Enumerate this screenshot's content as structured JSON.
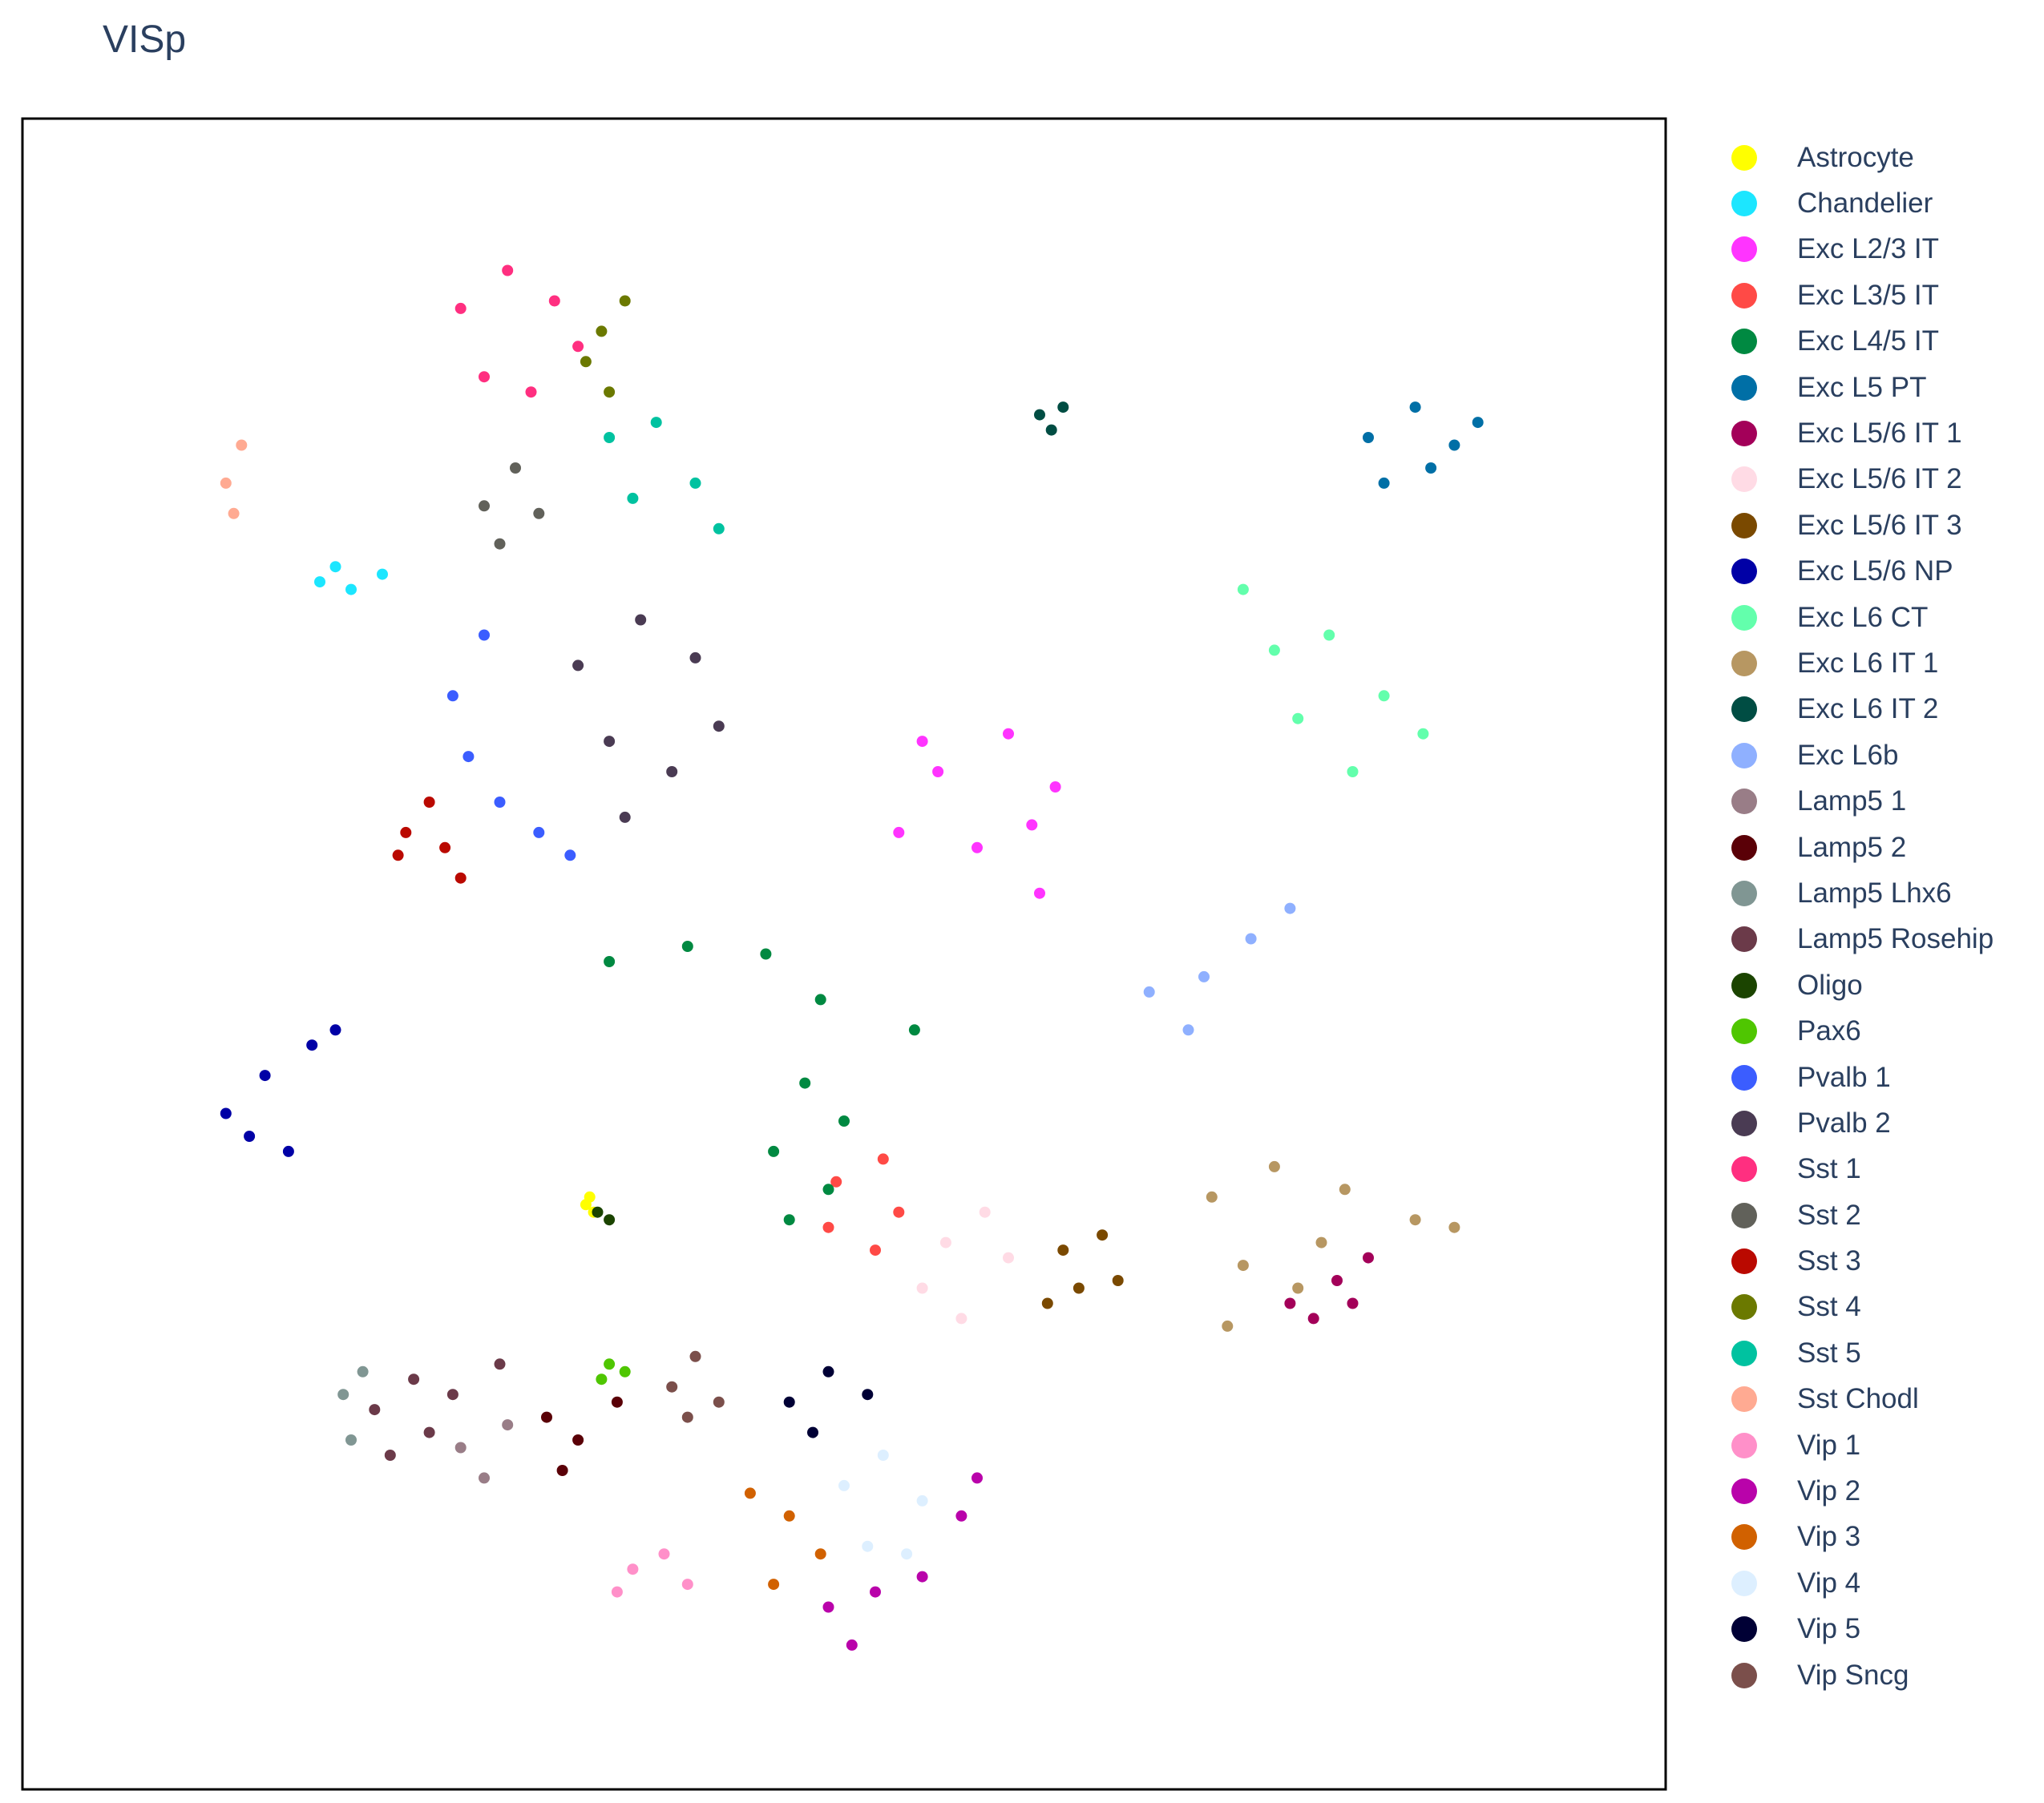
{
  "chart_data": {
    "type": "scatter",
    "title": "VISp",
    "xlabel": "",
    "ylabel": "",
    "grid": false,
    "legend_position": "right",
    "series": [
      {
        "name": "Astrocyte",
        "color": "#FFFF00",
        "points": [
          [
            7.2,
            2.85
          ],
          [
            7.3,
            2.8
          ],
          [
            7.25,
            2.9
          ]
        ]
      },
      {
        "name": "Chandelier",
        "color": "#1CE6FF",
        "points": [
          [
            3.8,
            6.95
          ],
          [
            4.2,
            6.9
          ],
          [
            4.6,
            7.0
          ],
          [
            4.0,
            7.05
          ]
        ]
      },
      {
        "name": "Exc L2/3 IT",
        "color": "#FF34FF",
        "points": [
          [
            11.7,
            5.7
          ],
          [
            12.6,
            5.95
          ],
          [
            13.2,
            5.6
          ],
          [
            11.2,
            5.3
          ],
          [
            12.2,
            5.2
          ],
          [
            13.0,
            4.9
          ],
          [
            11.5,
            5.9
          ],
          [
            12.9,
            5.35
          ]
        ]
      },
      {
        "name": "Exc L3/5 IT",
        "color": "#FF4A46",
        "points": [
          [
            10.4,
            3.0
          ],
          [
            11.0,
            3.15
          ],
          [
            11.2,
            2.8
          ],
          [
            10.3,
            2.7
          ],
          [
            10.9,
            2.55
          ]
        ]
      },
      {
        "name": "Exc L4/5 IT",
        "color": "#008941",
        "points": [
          [
            7.5,
            4.45
          ],
          [
            8.5,
            4.55
          ],
          [
            9.5,
            4.5
          ],
          [
            10.2,
            4.2
          ],
          [
            10.0,
            3.65
          ],
          [
            10.5,
            3.4
          ],
          [
            9.6,
            3.2
          ],
          [
            10.3,
            2.95
          ],
          [
            9.8,
            2.75
          ],
          [
            11.4,
            4.0
          ]
        ]
      },
      {
        "name": "Exc L5 PT",
        "color": "#006FA6",
        "points": [
          [
            17.2,
            7.9
          ],
          [
            17.8,
            8.1
          ],
          [
            18.3,
            7.85
          ],
          [
            17.4,
            7.6
          ],
          [
            18.0,
            7.7
          ],
          [
            18.6,
            8.0
          ]
        ]
      },
      {
        "name": "Exc L5/6 IT 1",
        "color": "#A30059",
        "points": [
          [
            16.2,
            2.2
          ],
          [
            16.8,
            2.35
          ],
          [
            17.2,
            2.5
          ],
          [
            16.5,
            2.1
          ],
          [
            17.0,
            2.2
          ]
        ]
      },
      {
        "name": "Exc L5/6 IT 2",
        "color": "#FFDBE5",
        "points": [
          [
            11.8,
            2.6
          ],
          [
            12.3,
            2.8
          ],
          [
            11.5,
            2.3
          ],
          [
            12.0,
            2.1
          ],
          [
            12.6,
            2.5
          ]
        ]
      },
      {
        "name": "Exc L5/6 IT 3",
        "color": "#7A4900",
        "points": [
          [
            13.3,
            2.55
          ],
          [
            13.8,
            2.65
          ],
          [
            13.5,
            2.3
          ],
          [
            14.0,
            2.35
          ],
          [
            13.1,
            2.2
          ]
        ]
      },
      {
        "name": "Exc L5/6 NP",
        "color": "#0000A6",
        "points": [
          [
            2.6,
            3.45
          ],
          [
            3.1,
            3.7
          ],
          [
            3.7,
            3.9
          ],
          [
            4.0,
            4.0
          ],
          [
            3.4,
            3.2
          ],
          [
            2.9,
            3.3
          ]
        ]
      },
      {
        "name": "Exc L6 CT",
        "color": "#63FFAC",
        "points": [
          [
            16.0,
            6.5
          ],
          [
            16.7,
            6.6
          ],
          [
            17.4,
            6.2
          ],
          [
            16.3,
            6.05
          ],
          [
            17.0,
            5.7
          ],
          [
            17.9,
            5.95
          ],
          [
            15.6,
            6.9
          ]
        ]
      },
      {
        "name": "Exc L6 IT 1",
        "color": "#B79762",
        "points": [
          [
            15.2,
            2.9
          ],
          [
            16.0,
            3.1
          ],
          [
            16.9,
            2.95
          ],
          [
            17.8,
            2.75
          ],
          [
            15.6,
            2.45
          ],
          [
            16.3,
            2.3
          ],
          [
            15.4,
            2.05
          ],
          [
            18.3,
            2.7
          ],
          [
            16.6,
            2.6
          ]
        ]
      },
      {
        "name": "Exc L6 IT 2",
        "color": "#004D43",
        "points": [
          [
            13.0,
            8.05
          ],
          [
            13.3,
            8.1
          ],
          [
            13.15,
            7.95
          ]
        ]
      },
      {
        "name": "Exc L6b",
        "color": "#8FB0FF",
        "points": [
          [
            14.4,
            4.25
          ],
          [
            15.1,
            4.35
          ],
          [
            15.7,
            4.6
          ],
          [
            14.9,
            4.0
          ],
          [
            16.2,
            4.8
          ]
        ]
      },
      {
        "name": "Lamp5 1",
        "color": "#997D87",
        "points": [
          [
            5.6,
            1.25
          ],
          [
            6.2,
            1.4
          ],
          [
            5.9,
            1.05
          ]
        ]
      },
      {
        "name": "Lamp5 2",
        "color": "#5A0007",
        "points": [
          [
            6.7,
            1.45
          ],
          [
            7.1,
            1.3
          ],
          [
            7.6,
            1.55
          ],
          [
            6.9,
            1.1
          ]
        ]
      },
      {
        "name": "Lamp5 Lhx6",
        "color": "#809693",
        "points": [
          [
            4.1,
            1.6
          ],
          [
            4.2,
            1.3
          ],
          [
            4.35,
            1.75
          ]
        ]
      },
      {
        "name": "Lamp5 Rosehip",
        "color": "#6B3A49",
        "points": [
          [
            4.5,
            1.5
          ],
          [
            5.0,
            1.7
          ],
          [
            5.5,
            1.6
          ],
          [
            4.7,
            1.2
          ],
          [
            5.2,
            1.35
          ],
          [
            6.1,
            1.8
          ]
        ]
      },
      {
        "name": "Oligo",
        "color": "#1B4400",
        "points": [
          [
            7.35,
            2.8
          ],
          [
            7.5,
            2.75
          ]
        ]
      },
      {
        "name": "Pax6",
        "color": "#4FC601",
        "points": [
          [
            7.5,
            1.8
          ],
          [
            7.7,
            1.75
          ],
          [
            7.4,
            1.7
          ]
        ]
      },
      {
        "name": "Pvalb 1",
        "color": "#3B5DFF",
        "points": [
          [
            5.5,
            6.2
          ],
          [
            5.7,
            5.8
          ],
          [
            6.1,
            5.5
          ],
          [
            6.6,
            5.3
          ],
          [
            7.0,
            5.15
          ],
          [
            5.9,
            6.6
          ]
        ]
      },
      {
        "name": "Pvalb 2",
        "color": "#4A3B53",
        "points": [
          [
            7.1,
            6.4
          ],
          [
            7.9,
            6.7
          ],
          [
            8.6,
            6.45
          ],
          [
            7.5,
            5.9
          ],
          [
            8.3,
            5.7
          ],
          [
            7.7,
            5.4
          ],
          [
            8.9,
            6.0
          ]
        ]
      },
      {
        "name": "Sst 1",
        "color": "#FF2F80",
        "points": [
          [
            5.6,
            8.75
          ],
          [
            6.2,
            9.0
          ],
          [
            6.8,
            8.8
          ],
          [
            5.9,
            8.3
          ],
          [
            6.5,
            8.2
          ],
          [
            7.1,
            8.5
          ]
        ]
      },
      {
        "name": "Sst 2",
        "color": "#61615A",
        "points": [
          [
            5.9,
            7.45
          ],
          [
            6.3,
            7.7
          ],
          [
            6.6,
            7.4
          ],
          [
            6.1,
            7.2
          ]
        ]
      },
      {
        "name": "Sst 3",
        "color": "#BA0900",
        "points": [
          [
            4.8,
            5.15
          ],
          [
            5.2,
            5.5
          ],
          [
            5.6,
            5.0
          ],
          [
            4.9,
            5.3
          ],
          [
            5.4,
            5.2
          ]
        ]
      },
      {
        "name": "Sst 4",
        "color": "#6B7900",
        "points": [
          [
            7.4,
            8.6
          ],
          [
            7.7,
            8.8
          ],
          [
            7.5,
            8.2
          ],
          [
            7.2,
            8.4
          ]
        ]
      },
      {
        "name": "Sst 5",
        "color": "#00C2A0",
        "points": [
          [
            7.5,
            7.9
          ],
          [
            8.1,
            8.0
          ],
          [
            8.6,
            7.6
          ],
          [
            7.8,
            7.5
          ],
          [
            8.9,
            7.3
          ]
        ]
      },
      {
        "name": "Sst Chodl",
        "color": "#FFAA92",
        "points": [
          [
            2.6,
            7.6
          ],
          [
            2.8,
            7.85
          ],
          [
            2.7,
            7.4
          ]
        ]
      },
      {
        "name": "Vip 1",
        "color": "#FF90C9",
        "points": [
          [
            7.8,
            0.45
          ],
          [
            8.2,
            0.55
          ],
          [
            8.5,
            0.35
          ],
          [
            7.6,
            0.3
          ]
        ]
      },
      {
        "name": "Vip 2",
        "color": "#B903AA",
        "points": [
          [
            10.3,
            0.2
          ],
          [
            10.9,
            0.3
          ],
          [
            11.5,
            0.4
          ],
          [
            12.0,
            0.8
          ],
          [
            12.2,
            1.05
          ],
          [
            10.6,
            -0.05
          ]
        ]
      },
      {
        "name": "Vip 3",
        "color": "#D16100",
        "points": [
          [
            9.3,
            0.95
          ],
          [
            9.8,
            0.8
          ],
          [
            10.2,
            0.55
          ],
          [
            9.6,
            0.35
          ]
        ]
      },
      {
        "name": "Vip 4",
        "color": "#DDEFFF",
        "points": [
          [
            10.5,
            1.0
          ],
          [
            11.0,
            1.2
          ],
          [
            11.5,
            0.9
          ],
          [
            10.8,
            0.6
          ],
          [
            11.3,
            0.55
          ]
        ]
      },
      {
        "name": "Vip 5",
        "color": "#000035",
        "points": [
          [
            9.8,
            1.55
          ],
          [
            10.3,
            1.75
          ],
          [
            10.8,
            1.6
          ],
          [
            10.1,
            1.35
          ]
        ]
      },
      {
        "name": "Vip Sncg",
        "color": "#7B4F4B",
        "points": [
          [
            8.3,
            1.65
          ],
          [
            8.6,
            1.85
          ],
          [
            8.9,
            1.55
          ],
          [
            8.5,
            1.45
          ]
        ]
      }
    ]
  }
}
